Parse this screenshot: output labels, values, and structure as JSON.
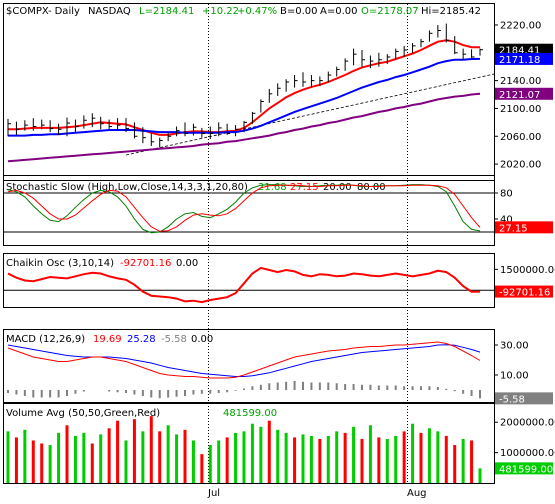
{
  "header": {
    "symbol": "$COMPX",
    "period": "Daily",
    "exchange": "NASDAQ",
    "last": "L=2184.41",
    "change": "+10.22",
    "change_pct": "+0.47%",
    "bid": "B=0.00",
    "ask": "A=0.00",
    "open": "O=2178.07",
    "high": "Hi=2185.42"
  },
  "colors": {
    "price_bars": "#000000",
    "ma_fast": "#ff0000",
    "ma_mid": "#0000ff",
    "ma_slow": "#800080",
    "stoch_k": "#008000",
    "stoch_d": "#ff0000",
    "chaikin": "#ff0000",
    "macd_line": "#0000ff",
    "macd_signal": "#ff0000",
    "macd_hist": "#808080",
    "vol_up": "#00cc00",
    "vol_down": "#ff0000",
    "grid": "#000000"
  },
  "x_axis_labels": [
    "Jul",
    "Aug"
  ],
  "chart_data": [
    {
      "type": "line",
      "title": "$COMPX - Daily NASDAQ",
      "ylim": [
        2000,
        2230
      ],
      "y_ticks": [
        2020,
        2060,
        2100,
        2140,
        2180,
        2220
      ],
      "y_tick_labels": [
        "2020.00",
        "2060.00",
        "2100.00",
        "2140.00",
        "2180.00",
        "2220.00"
      ],
      "value_tags": [
        {
          "value": 2184.41,
          "label": "2184.41",
          "color": "#000000"
        },
        {
          "value": 2171.18,
          "label": "2171.18",
          "color": "#0000ff"
        },
        {
          "value": 2121.07,
          "label": "2121.07",
          "color": "#800080"
        }
      ],
      "ohlc": {
        "highs": [
          2085,
          2081,
          2083,
          2086,
          2084,
          2083,
          2078,
          2087,
          2084,
          2090,
          2093,
          2088,
          2084,
          2086,
          2086,
          2080,
          2073,
          2064,
          2058,
          2066,
          2074,
          2080,
          2078,
          2072,
          2074,
          2080,
          2078,
          2076,
          2082,
          2095,
          2113,
          2128,
          2136,
          2142,
          2148,
          2152,
          2148,
          2146,
          2153,
          2160,
          2172,
          2186,
          2184,
          2176,
          2180,
          2178,
          2186,
          2190,
          2194,
          2200,
          2212,
          2220,
          2222,
          2204,
          2186,
          2185,
          2186
        ],
        "lows": [
          2060,
          2062,
          2068,
          2068,
          2070,
          2066,
          2062,
          2060,
          2064,
          2071,
          2073,
          2070,
          2070,
          2068,
          2066,
          2057,
          2050,
          2046,
          2044,
          2053,
          2060,
          2060,
          2061,
          2058,
          2056,
          2060,
          2062,
          2060,
          2066,
          2078,
          2094,
          2108,
          2118,
          2124,
          2130,
          2131,
          2130,
          2132,
          2138,
          2146,
          2154,
          2162,
          2160,
          2158,
          2160,
          2164,
          2170,
          2174,
          2180,
          2188,
          2196,
          2202,
          2195,
          2178,
          2170,
          2170,
          2176
        ],
        "closes": [
          2078,
          2070,
          2076,
          2074,
          2076,
          2071,
          2070,
          2079,
          2074,
          2083,
          2086,
          2078,
          2074,
          2076,
          2071,
          2060,
          2058,
          2052,
          2054,
          2060,
          2068,
          2064,
          2073,
          2064,
          2064,
          2072,
          2064,
          2070,
          2080,
          2093,
          2110,
          2121,
          2129,
          2138,
          2140,
          2138,
          2140,
          2140,
          2148,
          2156,
          2168,
          2178,
          2170,
          2168,
          2170,
          2174,
          2182,
          2184,
          2190,
          2196,
          2208,
          2212,
          2198,
          2180,
          2178,
          2174,
          2184.41
        ]
      },
      "series": [
        {
          "values": [
            2070,
            2070,
            2071,
            2072,
            2072,
            2072,
            2072,
            2073,
            2074,
            2076,
            2078,
            2080,
            2079,
            2078,
            2077,
            2073,
            2069,
            2065,
            2062,
            2062,
            2064,
            2066,
            2067,
            2067,
            2066,
            2066,
            2067,
            2068,
            2072,
            2080,
            2090,
            2100,
            2108,
            2116,
            2122,
            2127,
            2131,
            2134,
            2138,
            2143,
            2148,
            2154,
            2159,
            2162,
            2165,
            2167,
            2171,
            2175,
            2179,
            2184,
            2190,
            2196,
            2198,
            2196,
            2191,
            2188,
            2188
          ]
        },
        {
          "values": [
            2061,
            2061,
            2061,
            2062,
            2062,
            2063,
            2063,
            2064,
            2065,
            2066,
            2067,
            2068,
            2069,
            2069,
            2069,
            2069,
            2068,
            2067,
            2066,
            2066,
            2066,
            2065,
            2065,
            2065,
            2065,
            2065,
            2066,
            2066,
            2068,
            2071,
            2075,
            2080,
            2085,
            2090,
            2095,
            2099,
            2103,
            2107,
            2111,
            2115,
            2120,
            2125,
            2130,
            2134,
            2138,
            2141,
            2145,
            2148,
            2152,
            2156,
            2160,
            2165,
            2168,
            2170,
            2170,
            2171,
            2171.18
          ]
        },
        {
          "values": [
            2024,
            2025,
            2026,
            2027,
            2028,
            2029,
            2030,
            2031,
            2032,
            2033,
            2034,
            2035,
            2036,
            2037,
            2038,
            2039,
            2040,
            2041,
            2042,
            2043,
            2044,
            2045,
            2046,
            2048,
            2049,
            2050,
            2052,
            2053,
            2055,
            2057,
            2059,
            2061,
            2064,
            2066,
            2069,
            2071,
            2074,
            2076,
            2079,
            2081,
            2084,
            2087,
            2089,
            2092,
            2095,
            2097,
            2100,
            2102,
            2105,
            2107,
            2110,
            2113,
            2115,
            2117,
            2118,
            2120,
            2121.07
          ]
        }
      ],
      "trendline": {
        "x": [
          14,
          56
        ],
        "y": [
          2033,
          2145
        ]
      }
    },
    {
      "type": "line",
      "title": "Stochastic Slow (High,Low,Close,14,3,3,1,20,80)",
      "legend_values": [
        "21.68",
        "27.15",
        "20.00",
        "80.00"
      ],
      "ylim": [
        0,
        100
      ],
      "y_ticks": [
        40,
        80
      ],
      "y_tick_labels": [
        "40",
        "80"
      ],
      "levels": [
        20,
        80
      ],
      "value_tags": [
        {
          "value": 27.15,
          "label": "27.15",
          "color": "#ff0000"
        }
      ],
      "series": [
        {
          "values": [
            85,
            82,
            74,
            60,
            48,
            38,
            36,
            45,
            58,
            70,
            80,
            84,
            82,
            74,
            60,
            40,
            24,
            19,
            20,
            28,
            40,
            48,
            50,
            44,
            42,
            48,
            55,
            66,
            80,
            88,
            92,
            93,
            93,
            92,
            91,
            90,
            90,
            91,
            92,
            92,
            93,
            92,
            90,
            90,
            91,
            91,
            91,
            92,
            93,
            93,
            92,
            90,
            82,
            60,
            36,
            24,
            21.68
          ]
        },
        {
          "values": [
            82,
            84,
            80,
            72,
            60,
            48,
            40,
            40,
            46,
            57,
            68,
            78,
            84,
            83,
            74,
            58,
            42,
            28,
            21,
            22,
            28,
            38,
            46,
            48,
            46,
            45,
            48,
            56,
            68,
            80,
            88,
            91,
            92,
            92,
            92,
            91,
            90,
            90,
            91,
            91,
            92,
            92,
            91,
            90,
            90,
            91,
            91,
            91,
            92,
            92,
            92,
            91,
            88,
            78,
            60,
            42,
            27.15
          ]
        }
      ]
    },
    {
      "type": "line",
      "title": "Chaikin Osc (3,10,14)",
      "legend_values": [
        "-92701.16",
        "0.00"
      ],
      "ylim": [
        -1200000,
        2600000
      ],
      "y_ticks": [
        1500000
      ],
      "y_tick_labels": [
        "1500000.00"
      ],
      "levels": [
        0
      ],
      "value_tags": [
        {
          "value": -92701.16,
          "label": "-92701.16",
          "color": "#ff0000"
        }
      ],
      "series": [
        {
          "values": [
            1200000,
            900000,
            700000,
            650000,
            800000,
            950000,
            900000,
            850000,
            1000000,
            1150000,
            1250000,
            1200000,
            1000000,
            850000,
            750000,
            400000,
            -100000,
            -400000,
            -450000,
            -500000,
            -600000,
            -800000,
            -750000,
            -850000,
            -700000,
            -600000,
            -500000,
            -200000,
            500000,
            1200000,
            1600000,
            1450000,
            1300000,
            1450000,
            1350000,
            1100000,
            1000000,
            1150000,
            1100000,
            1000000,
            1050000,
            1200000,
            1150000,
            1050000,
            1000000,
            1100000,
            1200000,
            1100000,
            1000000,
            1100000,
            1200000,
            1400000,
            1300000,
            900000,
            300000,
            -100000,
            -92701.16
          ]
        }
      ]
    },
    {
      "type": "line",
      "title": "MACD (12,26,9)",
      "legend_values": [
        "19.69",
        "25.28",
        "-5.58",
        "0.00"
      ],
      "ylim": [
        -8,
        40
      ],
      "y_ticks": [
        10,
        30
      ],
      "y_tick_labels": [
        "10.00",
        "30.00"
      ],
      "value_tags": [
        {
          "value": -5.58,
          "label": "-5.58",
          "color": "#808080"
        }
      ],
      "series": [
        {
          "values": [
            28,
            26,
            24,
            22,
            21,
            20,
            19,
            19,
            20,
            21,
            22,
            22,
            21,
            20,
            19,
            17,
            15,
            13,
            11,
            10,
            9.5,
            9,
            9,
            8.5,
            8,
            8,
            8,
            8.5,
            10,
            12,
            14,
            16,
            18,
            20,
            22,
            23,
            24,
            25,
            26,
            26.5,
            27,
            28,
            28.5,
            29,
            29,
            29.5,
            30,
            30,
            30.5,
            31,
            31.5,
            32,
            31,
            29,
            26,
            23,
            19.69
          ]
        },
        {
          "values": [
            30,
            29,
            28,
            27,
            26,
            25,
            24,
            23,
            22.5,
            22,
            22,
            22,
            22,
            21.5,
            21,
            20,
            19,
            18,
            16.5,
            15,
            14,
            13,
            12,
            11,
            10.5,
            10,
            9.5,
            9,
            9,
            9.5,
            10.5,
            11.5,
            13,
            14.5,
            16,
            17.5,
            19,
            20,
            21,
            22,
            23,
            24,
            25,
            25.5,
            26,
            26.5,
            27,
            27.5,
            28,
            28.5,
            29,
            30,
            30.2,
            29.8,
            28.5,
            27,
            25.28
          ]
        }
      ],
      "histogram": [
        -2,
        -3,
        -4,
        -5,
        -5,
        -5,
        -5,
        -4,
        -2.5,
        -1,
        0,
        0,
        -1,
        -1.5,
        -2,
        -3,
        -4,
        -5,
        -5.5,
        -5,
        -4.5,
        -4,
        -3,
        -2.5,
        -2.5,
        -2,
        -1.5,
        -0.5,
        1,
        2.5,
        3.5,
        4.5,
        5,
        5.5,
        6,
        5.5,
        5,
        5,
        5,
        4.5,
        4,
        4,
        3.5,
        3.5,
        3,
        3,
        3,
        2.5,
        2.5,
        2.5,
        2.5,
        2,
        0.8,
        -0.8,
        -2.5,
        -4,
        -5.58
      ]
    },
    {
      "type": "bar",
      "title": "Volume Avg (50,50,Green,Red)",
      "legend_values": [
        "481599.00"
      ],
      "ylim": [
        0,
        2600000
      ],
      "y_ticks": [
        1000000,
        2000000
      ],
      "y_tick_labels": [
        "1000000.00",
        "2000000.00"
      ],
      "value_tags": [
        {
          "value": 481599,
          "label": "481599.00",
          "color": "#00cc00"
        }
      ],
      "values": [
        1700000,
        1500000,
        1750000,
        1400000,
        1300000,
        1250000,
        1650000,
        1900000,
        1550000,
        1650000,
        1300000,
        1600000,
        1800000,
        2050000,
        1400000,
        2100000,
        1700000,
        2200000,
        1700000,
        1900000,
        1600000,
        1750000,
        1400000,
        950000,
        1250000,
        1400000,
        1500000,
        1650000,
        1700000,
        1950000,
        1850000,
        2050000,
        1750000,
        1650000,
        1500000,
        1600000,
        1550000,
        1450000,
        1550000,
        1700000,
        1650000,
        1850000,
        1450000,
        1900000,
        1500000,
        1450000,
        1550000,
        1700000,
        1950000,
        1650000,
        1800000,
        1700000,
        1550000,
        1250000,
        1450000,
        1400000,
        481599
      ],
      "colors": [
        "g",
        "r",
        "g",
        "r",
        "r",
        "g",
        "g",
        "r",
        "g",
        "g",
        "r",
        "g",
        "r",
        "r",
        "g",
        "r",
        "g",
        "r",
        "r",
        "g",
        "g",
        "r",
        "g",
        "r",
        "g",
        "g",
        "r",
        "g",
        "g",
        "g",
        "g",
        "r",
        "g",
        "g",
        "r",
        "g",
        "g",
        "r",
        "g",
        "g",
        "r",
        "g",
        "r",
        "g",
        "r",
        "g",
        "g",
        "r",
        "g",
        "r",
        "g",
        "g",
        "r",
        "r",
        "g",
        "r",
        "g"
      ]
    }
  ]
}
